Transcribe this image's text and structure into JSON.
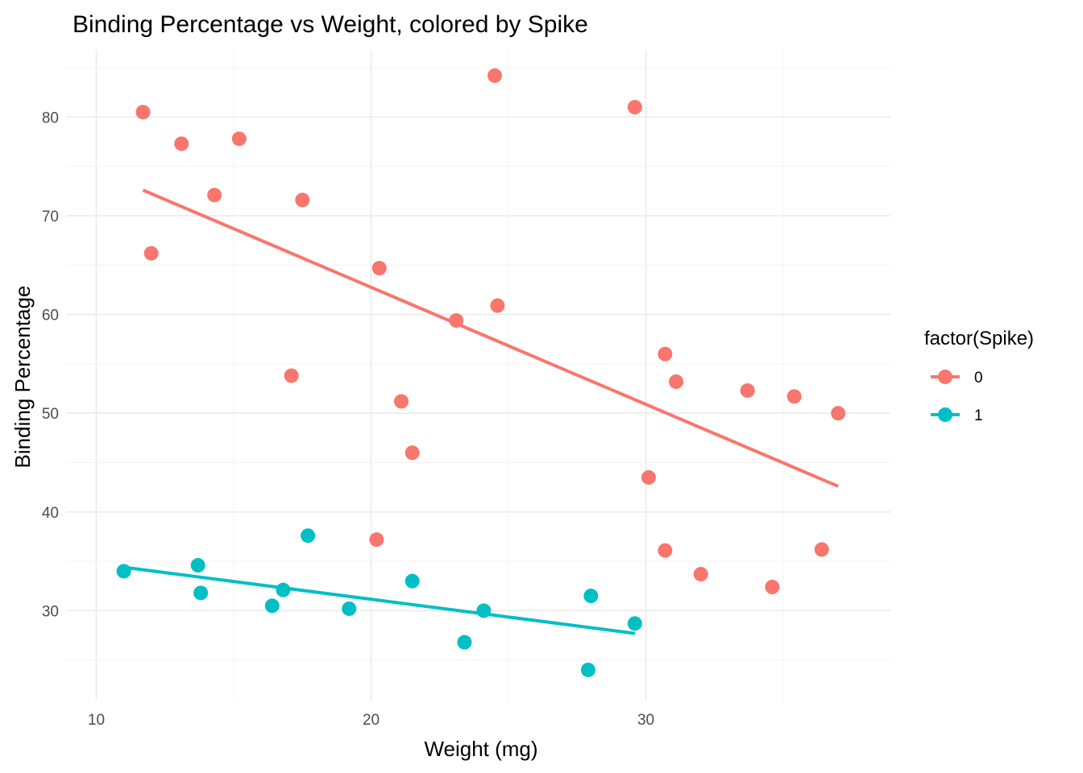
{
  "chart_data": {
    "type": "scatter",
    "title": "Binding Percentage vs Weight, colored by Spike",
    "xlabel": "Weight (mg)",
    "ylabel": "Binding Percentage",
    "xlim": [
      8.9,
      38.9
    ],
    "ylim": [
      20.9,
      86.8
    ],
    "x_ticks": [
      10,
      20,
      30
    ],
    "y_ticks": [
      30,
      40,
      50,
      60,
      70,
      80
    ],
    "grid": true,
    "legend": {
      "title": "factor(Spike)",
      "position": "right"
    },
    "series": [
      {
        "name": "0",
        "color": "#F8766D",
        "points": [
          [
            11.7,
            80.5
          ],
          [
            13.1,
            77.3
          ],
          [
            14.3,
            72.1
          ],
          [
            15.2,
            77.8
          ],
          [
            17.5,
            71.6
          ],
          [
            12.0,
            66.2
          ],
          [
            17.1,
            53.8
          ],
          [
            20.3,
            64.7
          ],
          [
            21.1,
            51.2
          ],
          [
            21.5,
            46.0
          ],
          [
            20.2,
            37.2
          ],
          [
            23.1,
            59.4
          ],
          [
            24.5,
            84.2
          ],
          [
            24.6,
            60.9
          ],
          [
            29.6,
            81.0
          ],
          [
            30.1,
            43.5
          ],
          [
            30.7,
            56.0
          ],
          [
            31.1,
            53.2
          ],
          [
            30.7,
            36.1
          ],
          [
            32.0,
            33.7
          ],
          [
            33.7,
            52.3
          ],
          [
            34.6,
            32.4
          ],
          [
            35.4,
            51.7
          ],
          [
            36.4,
            36.2
          ],
          [
            37.0,
            50.0
          ]
        ],
        "fit": [
          [
            11.7,
            72.6
          ],
          [
            37.0,
            42.6
          ]
        ]
      },
      {
        "name": "1",
        "color": "#00BFC4",
        "points": [
          [
            11.0,
            34.0
          ],
          [
            13.7,
            34.6
          ],
          [
            13.8,
            31.8
          ],
          [
            16.4,
            30.5
          ],
          [
            16.8,
            32.1
          ],
          [
            17.7,
            37.6
          ],
          [
            19.2,
            30.2
          ],
          [
            21.5,
            33.0
          ],
          [
            23.4,
            26.8
          ],
          [
            24.1,
            30.0
          ],
          [
            27.9,
            24.0
          ],
          [
            28.0,
            31.5
          ],
          [
            29.6,
            28.7
          ]
        ],
        "fit": [
          [
            11.0,
            34.4
          ],
          [
            29.6,
            27.7
          ]
        ]
      }
    ]
  }
}
